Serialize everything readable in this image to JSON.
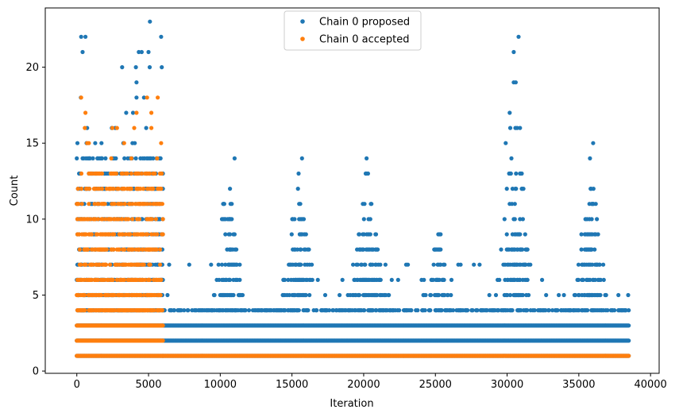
{
  "chart_data": {
    "type": "scatter",
    "title": "",
    "xlabel": "Iteration",
    "ylabel": "Count",
    "xlim": [
      -2200,
      40600
    ],
    "ylim": [
      -0.15,
      23.9
    ],
    "xticks": [
      0,
      5000,
      10000,
      15000,
      20000,
      25000,
      30000,
      35000,
      40000
    ],
    "yticks": [
      0,
      5,
      10,
      15,
      20
    ],
    "legend": {
      "placement": "upper-center"
    },
    "series": [
      {
        "name": "Chain 0 proposed",
        "color": "#1f77b4",
        "regions": [
          {
            "x0": 0,
            "x1": 6000,
            "max": 14,
            "sparseMax": 22,
            "density": 0.6
          },
          {
            "x0": 6000,
            "x1": 38500,
            "max": 4,
            "sparseMax": 7,
            "density": 0.35
          }
        ],
        "clusters": [
          {
            "center": 10500,
            "spread": 1300,
            "peak": 14
          },
          {
            "center": 15500,
            "spread": 1600,
            "peak": 14
          },
          {
            "center": 20200,
            "spread": 1700,
            "peak": 14
          },
          {
            "center": 25200,
            "spread": 1200,
            "peak": 10
          },
          {
            "center": 30500,
            "spread": 1600,
            "peak": 22
          },
          {
            "center": 35800,
            "spread": 1500,
            "peak": 15
          }
        ],
        "highlights": [
          {
            "x": 5100,
            "y": 23
          },
          {
            "x": 300,
            "y": 22
          },
          {
            "x": 600,
            "y": 22
          },
          {
            "x": 30800,
            "y": 22
          },
          {
            "x": 5000,
            "y": 21
          },
          {
            "x": 400,
            "y": 21
          },
          {
            "x": 30600,
            "y": 19
          },
          {
            "x": 30900,
            "y": 16
          },
          {
            "x": 36000,
            "y": 15
          },
          {
            "x": 29900,
            "y": 15
          },
          {
            "x": 11000,
            "y": 14
          },
          {
            "x": 15700,
            "y": 14
          },
          {
            "x": 20200,
            "y": 14
          }
        ]
      },
      {
        "name": "Chain 0 accepted",
        "color": "#ff7f0e",
        "regions": [
          {
            "x0": 0,
            "x1": 6000,
            "max": 13,
            "sparseMax": 18,
            "density": 0.5
          },
          {
            "x0": 6000,
            "x1": 38500,
            "max": 1,
            "sparseMax": 1,
            "density": 0.6
          }
        ],
        "highlights": [
          {
            "x": 300,
            "y": 18
          },
          {
            "x": 4900,
            "y": 18
          },
          {
            "x": 600,
            "y": 17
          },
          {
            "x": 5200,
            "y": 17
          },
          {
            "x": 2800,
            "y": 16
          },
          {
            "x": 3300,
            "y": 15
          }
        ]
      }
    ]
  }
}
